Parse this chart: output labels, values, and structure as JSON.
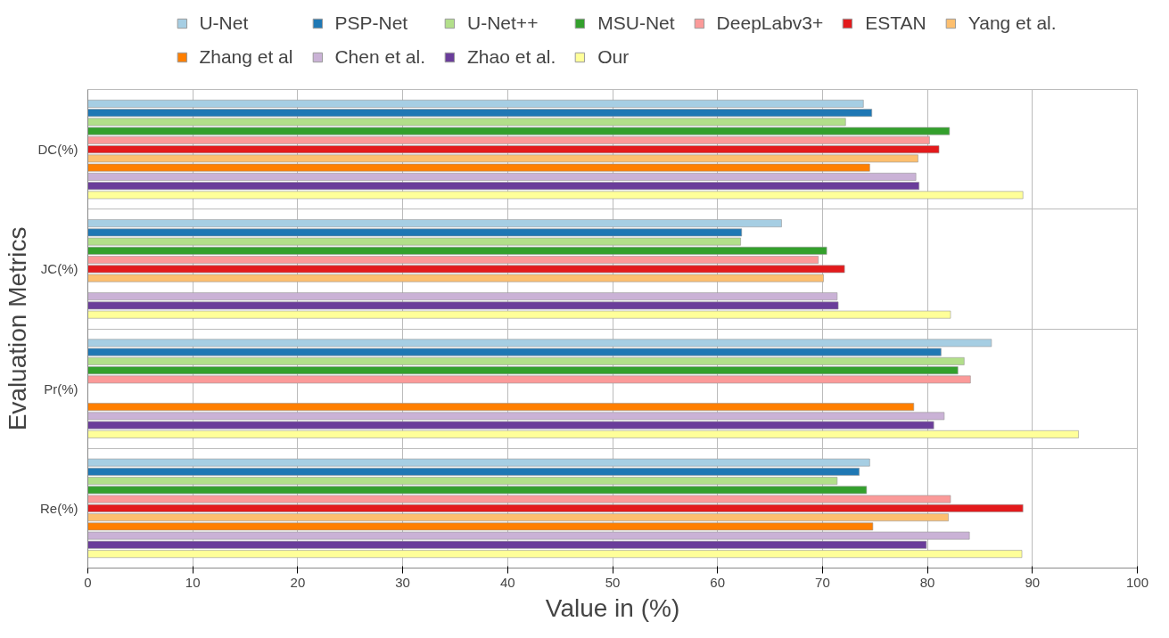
{
  "chart_data": {
    "type": "bar",
    "orientation": "horizontal",
    "xlabel": "Value in (%)",
    "ylabel": "Evaluation Metrics",
    "categories": [
      "DC(%)",
      "JC(%)",
      "Pr(%)",
      "Re(%)"
    ],
    "xlim": [
      0,
      100
    ],
    "xticks": [
      0,
      10,
      20,
      30,
      40,
      50,
      60,
      70,
      80,
      90,
      100
    ],
    "grid": true,
    "legend": "top",
    "series": [
      {
        "name": "U-Net",
        "color": "#a6cee3",
        "values": [
          73.9,
          66.1,
          86.1,
          74.5
        ]
      },
      {
        "name": "PSP-Net",
        "color": "#1f78b4",
        "values": [
          74.7,
          62.3,
          81.3,
          73.5
        ]
      },
      {
        "name": "U-Net++",
        "color": "#b2df8a",
        "values": [
          72.2,
          62.2,
          83.5,
          71.4
        ]
      },
      {
        "name": "MSU-Net",
        "color": "#33a02c",
        "values": [
          82.1,
          70.4,
          82.9,
          74.2
        ]
      },
      {
        "name": "DeepLabv3+",
        "color": "#fb9a99",
        "values": [
          80.2,
          69.6,
          84.1,
          82.2
        ]
      },
      {
        "name": "ESTAN",
        "color": "#e31a1c",
        "values": [
          81.1,
          72.1,
          null,
          89.1
        ]
      },
      {
        "name": "Yang et al.",
        "color": "#fdbf6f",
        "values": [
          79.1,
          70.1,
          null,
          82.0
        ]
      },
      {
        "name": "Zhang et al",
        "color": "#ff7f00",
        "values": [
          74.5,
          null,
          78.7,
          74.8
        ]
      },
      {
        "name": "Chen et al.",
        "color": "#cab2d6",
        "values": [
          78.9,
          71.4,
          81.6,
          84.0
        ]
      },
      {
        "name": "Zhao et al.",
        "color": "#6a3d9a",
        "values": [
          79.2,
          71.5,
          80.6,
          79.9
        ]
      },
      {
        "name": "Our",
        "color": "#ffff99",
        "values": [
          89.1,
          82.2,
          94.4,
          89.0
        ]
      }
    ]
  }
}
